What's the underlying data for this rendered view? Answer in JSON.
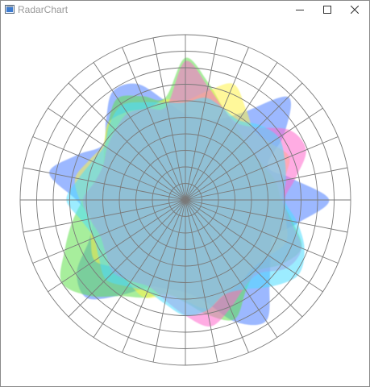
{
  "window": {
    "title": "RadarChart",
    "buttons": {
      "minimize_icon": "minimize-icon",
      "maximize_icon": "maximize-icon",
      "close_icon": "close-icon"
    }
  },
  "chart_data": {
    "type": "radar",
    "angular_divisions": 32,
    "radial_rings": 10,
    "grid": true,
    "gridline_color": "#7a7a7a",
    "series": [
      {
        "color": "#4a7dff",
        "r": [
          5.2,
          5.0,
          5.3,
          6.4,
          8.8,
          7.2,
          5.4,
          6.6,
          8.7,
          7.0,
          5.8,
          6.2,
          7.2,
          8.8,
          8.0,
          6.3,
          5.6,
          5.5,
          5.7,
          6.9,
          8.4,
          7.9,
          6.3,
          5.8,
          6.6,
          8.4,
          7.1,
          6.0,
          6.8,
          7.9,
          7.6,
          6.1
        ]
      },
      {
        "color": "#5fe04a",
        "r": [
          8.6,
          7.2,
          6.0,
          5.4,
          5.1,
          5.0,
          5.2,
          5.6,
          5.8,
          6.6,
          7.6,
          7.0,
          6.1,
          6.6,
          7.8,
          7.1,
          6.2,
          5.8,
          6.4,
          7.0,
          8.2,
          9.0,
          7.9,
          7.0,
          6.2,
          5.6,
          5.4,
          5.9,
          6.6,
          7.4,
          6.8,
          6.3
        ]
      },
      {
        "color": "#fff248",
        "r": [
          6.0,
          6.7,
          7.6,
          6.6,
          5.9,
          6.2,
          6.8,
          6.1,
          5.9,
          6.2,
          6.6,
          6.1,
          5.8,
          6.0,
          6.2,
          6.7,
          6.1,
          5.9,
          6.4,
          6.1,
          5.9,
          6.6,
          6.2,
          5.9,
          6.4,
          6.8,
          6.3,
          6.0,
          6.6,
          6.4,
          6.0,
          6.2
        ]
      },
      {
        "color": "#ff66cc",
        "r": [
          8.4,
          7.0,
          6.0,
          5.6,
          6.2,
          7.6,
          7.9,
          6.8,
          6.0,
          6.5,
          7.6,
          7.4,
          6.3,
          6.4,
          7.1,
          7.8,
          7.0,
          6.2,
          5.7,
          5.9,
          6.2,
          5.8,
          5.6,
          5.9,
          6.2,
          5.6,
          5.4,
          5.7,
          6.0,
          6.3,
          6.0,
          5.8
        ]
      },
      {
        "color": "#4cdcff",
        "r": [
          5.9,
          6.3,
          6.0,
          5.8,
          6.4,
          6.8,
          6.5,
          6.2,
          6.0,
          6.9,
          7.8,
          8.2,
          7.4,
          6.5,
          6.2,
          6.8,
          7.0,
          6.4,
          6.0,
          6.3,
          6.8,
          6.3,
          6.0,
          6.4,
          7.2,
          6.6,
          6.1,
          5.9,
          6.5,
          6.9,
          6.4,
          6.0
        ]
      }
    ]
  }
}
